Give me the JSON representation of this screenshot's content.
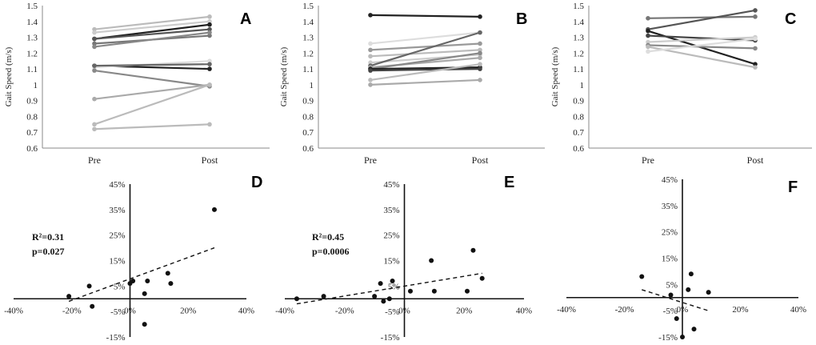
{
  "chart_data": [
    {
      "id": "A",
      "type": "line",
      "panel_label": "A",
      "ylabel": "Gait Speed (m/s)",
      "categories": [
        "Pre",
        "Post"
      ],
      "ylim": [
        0.6,
        1.5
      ],
      "yticks": [
        "0.6",
        "0.7",
        "0.8",
        "0.9",
        "1",
        "1.1",
        "1.2",
        "1.3",
        "1.4",
        "1.5"
      ],
      "series": [
        {
          "pre": 1.35,
          "post": 1.43,
          "color": "#bbbbbb"
        },
        {
          "pre": 1.33,
          "post": 1.4,
          "color": "#cccccc"
        },
        {
          "pre": 1.29,
          "post": 1.38,
          "color": "#222222"
        },
        {
          "pre": 1.29,
          "post": 1.35,
          "color": "#555555"
        },
        {
          "pre": 1.26,
          "post": 1.31,
          "color": "#777777"
        },
        {
          "pre": 1.24,
          "post": 1.33,
          "color": "#888888"
        },
        {
          "pre": 1.12,
          "post": 1.1,
          "color": "#222222"
        },
        {
          "pre": 1.11,
          "post": 1.15,
          "color": "#dddddd"
        },
        {
          "pre": 1.12,
          "post": 1.13,
          "color": "#666666"
        },
        {
          "pre": 1.09,
          "post": 0.99,
          "color": "#888888"
        },
        {
          "pre": 0.91,
          "post": 1.0,
          "color": "#aaaaaa"
        },
        {
          "pre": 0.75,
          "post": 1.0,
          "color": "#bbbbbb"
        },
        {
          "pre": 0.72,
          "post": 0.75,
          "color": "#bbbbbb"
        }
      ]
    },
    {
      "id": "B",
      "type": "line",
      "panel_label": "B",
      "ylabel": "Gait Speed (m/s)",
      "categories": [
        "Pre",
        "Post"
      ],
      "ylim": [
        0.6,
        1.5
      ],
      "yticks": [
        "0.6",
        "0.7",
        "0.8",
        "0.9",
        "1",
        "1.1",
        "1.2",
        "1.3",
        "1.4",
        "1.5"
      ],
      "series": [
        {
          "pre": 1.44,
          "post": 1.43,
          "color": "#222222"
        },
        {
          "pre": 1.26,
          "post": 1.33,
          "color": "#dddddd"
        },
        {
          "pre": 1.22,
          "post": 1.26,
          "color": "#999999"
        },
        {
          "pre": 1.18,
          "post": 1.22,
          "color": "#bbbbbb"
        },
        {
          "pre": 1.14,
          "post": 1.19,
          "color": "#cccccc"
        },
        {
          "pre": 1.12,
          "post": 1.33,
          "color": "#666666"
        },
        {
          "pre": 1.11,
          "post": 1.17,
          "color": "#aaaaaa"
        },
        {
          "pre": 1.1,
          "post": 1.2,
          "color": "#888888"
        },
        {
          "pre": 1.1,
          "post": 1.11,
          "color": "#222222"
        },
        {
          "pre": 1.09,
          "post": 1.1,
          "color": "#444444"
        },
        {
          "pre": 1.03,
          "post": 1.13,
          "color": "#bbbbbb"
        },
        {
          "pre": 1.0,
          "post": 1.03,
          "color": "#aaaaaa"
        }
      ]
    },
    {
      "id": "C",
      "type": "line",
      "panel_label": "C",
      "ylabel": "Gait Speed (m/s)",
      "categories": [
        "Pre",
        "Post"
      ],
      "ylim": [
        0.6,
        1.5
      ],
      "yticks": [
        "0.6",
        "0.7",
        "0.8",
        "0.9",
        "1",
        "1.1",
        "1.2",
        "1.3",
        "1.4",
        "1.5"
      ],
      "series": [
        {
          "pre": 1.42,
          "post": 1.43,
          "color": "#777777"
        },
        {
          "pre": 1.35,
          "post": 1.47,
          "color": "#555555"
        },
        {
          "pre": 1.34,
          "post": 1.13,
          "color": "#222222"
        },
        {
          "pre": 1.31,
          "post": 1.28,
          "color": "#444444"
        },
        {
          "pre": 1.27,
          "post": 1.3,
          "color": "#cccccc"
        },
        {
          "pre": 1.25,
          "post": 1.23,
          "color": "#888888"
        },
        {
          "pre": 1.24,
          "post": 1.11,
          "color": "#bbbbbb"
        },
        {
          "pre": 1.21,
          "post": 1.29,
          "color": "#dddddd"
        }
      ]
    },
    {
      "id": "D",
      "type": "scatter",
      "panel_label": "D",
      "xlim": [
        -40,
        40
      ],
      "ylim": [
        -15,
        45
      ],
      "xticks": [
        "-40%",
        "-20%",
        "0%",
        "20%",
        "40%"
      ],
      "yticks": [
        "-15%",
        "-5%",
        "5%",
        "15%",
        "25%",
        "35%",
        "45%"
      ],
      "stat_r2": "R²=0.31",
      "stat_p": "p=0.027",
      "points": [
        [
          -21,
          1
        ],
        [
          -14,
          5
        ],
        [
          -13,
          -3
        ],
        [
          0,
          6
        ],
        [
          1,
          7
        ],
        [
          5,
          2
        ],
        [
          5,
          -10
        ],
        [
          6,
          7
        ],
        [
          13,
          10
        ],
        [
          14,
          6
        ],
        [
          29,
          35
        ]
      ],
      "trendline": [
        [
          -21,
          -1
        ],
        [
          29,
          20
        ]
      ]
    },
    {
      "id": "E",
      "type": "scatter",
      "panel_label": "E",
      "xlim": [
        -40,
        40
      ],
      "ylim": [
        -15,
        45
      ],
      "xticks": [
        "-40%",
        "-20%",
        "0%",
        "20%",
        "40%"
      ],
      "yticks": [
        "-15%",
        "-5%",
        "5%",
        "15%",
        "25%",
        "35%",
        "45%"
      ],
      "stat_r2": "R²=0.45",
      "stat_p": "p=0.0006",
      "points": [
        [
          -36,
          0
        ],
        [
          -27,
          1
        ],
        [
          -10,
          1
        ],
        [
          -8,
          6
        ],
        [
          -7,
          -1
        ],
        [
          -5,
          0
        ],
        [
          -4,
          7
        ],
        [
          2,
          3
        ],
        [
          9,
          15
        ],
        [
          10,
          3
        ],
        [
          21,
          3
        ],
        [
          23,
          19
        ],
        [
          26,
          8
        ]
      ],
      "trendline": [
        [
          -36,
          -2
        ],
        [
          26,
          10
        ]
      ]
    },
    {
      "id": "F",
      "type": "scatter",
      "panel_label": "F",
      "xlim": [
        -40,
        40
      ],
      "ylim": [
        -15,
        45
      ],
      "xticks": [
        "-40%",
        "-20%",
        "0%",
        "20%",
        "40%"
      ],
      "yticks": [
        "-15%",
        "-5%",
        "5%",
        "15%",
        "25%",
        "35%",
        "45%"
      ],
      "points": [
        [
          -14,
          8
        ],
        [
          -4,
          1
        ],
        [
          -2,
          -8
        ],
        [
          0,
          -15
        ],
        [
          2,
          3
        ],
        [
          3,
          9
        ],
        [
          4,
          -12
        ],
        [
          9,
          2
        ]
      ],
      "trendline": [
        [
          -14,
          3
        ],
        [
          9,
          -5
        ]
      ]
    }
  ]
}
